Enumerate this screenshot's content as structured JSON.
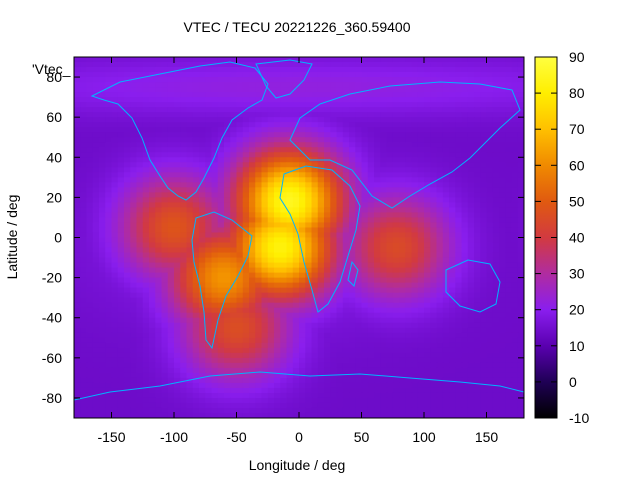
{
  "chart_data": {
    "type": "heatmap",
    "title": "VTEC / TECU 20221226_360.59400",
    "xlabel": "Longitude / deg",
    "ylabel": "Latitude / deg",
    "key_label": "'Vtec_",
    "xlim": [
      -180,
      180
    ],
    "ylim": [
      -90,
      90
    ],
    "x_ticks": [
      -150,
      -100,
      -50,
      0,
      50,
      100,
      150
    ],
    "y_ticks": [
      -80,
      -60,
      -40,
      -20,
      0,
      20,
      40,
      60,
      80
    ],
    "colorbar": {
      "range": [
        -10,
        90
      ],
      "ticks": [
        -10,
        0,
        10,
        20,
        30,
        40,
        50,
        60,
        70,
        80,
        90
      ],
      "palette": [
        "#000000",
        "#1f0055",
        "#5a00b0",
        "#8a1eee",
        "#b02ca0",
        "#d23a40",
        "#e05a10",
        "#f08a00",
        "#ffc000",
        "#ffee00",
        "#ffff40"
      ]
    },
    "background_level": 14,
    "features": [
      {
        "name": "americas-africa-crest",
        "lon": -15,
        "lat": -5,
        "value": 82
      },
      {
        "name": "north-africa-peak",
        "lon": -8,
        "lat": 18,
        "value": 85
      },
      {
        "name": "south-atlantic-lobe",
        "lon": -60,
        "lat": -20,
        "value": 62
      },
      {
        "name": "west-tropical-lobe",
        "lon": -100,
        "lat": 5,
        "value": 48
      },
      {
        "name": "southern-cone",
        "lon": -50,
        "lat": -45,
        "value": 46
      },
      {
        "name": "indian-ocean-spot",
        "lon": 78,
        "lat": -5,
        "value": 45
      },
      {
        "name": "north-arctic-band",
        "lon": 0,
        "lat": 75,
        "value": 22
      }
    ],
    "map_overlay": "coastlines",
    "overlay_color": "#00b4ff",
    "grid": false,
    "legend_placement": "top-left"
  }
}
